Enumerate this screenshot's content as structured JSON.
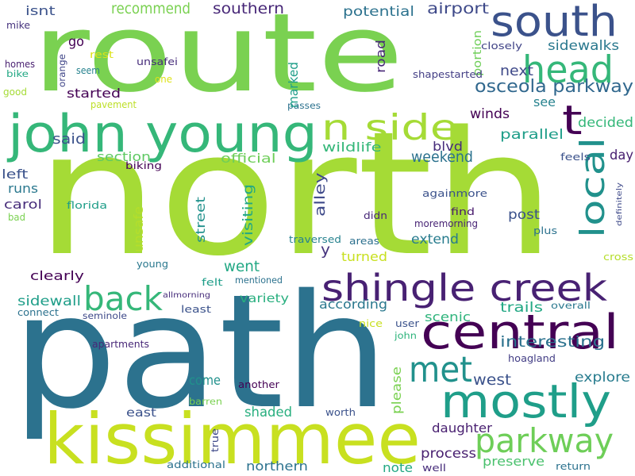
{
  "words": [
    {
      "text": "route",
      "color": "#7ad151"
    },
    {
      "text": "north",
      "color": "#a5db36"
    },
    {
      "text": "path",
      "color": "#2c728e"
    },
    {
      "text": "south",
      "color": "#3b528b"
    },
    {
      "text": "john young",
      "color": "#35b779"
    },
    {
      "text": "kissimmee",
      "color": "#c8e020"
    },
    {
      "text": "central",
      "color": "#440154"
    },
    {
      "text": "shingle creek",
      "color": "#482173"
    },
    {
      "text": "mostly",
      "color": "#1f9e89"
    },
    {
      "text": "head",
      "color": "#35b779"
    },
    {
      "text": "t",
      "color": "#440154"
    },
    {
      "text": "n side",
      "color": "#a5db36"
    },
    {
      "text": "local",
      "color": "#21918c"
    },
    {
      "text": "back",
      "color": "#35b779"
    },
    {
      "text": "met",
      "color": "#21918c"
    },
    {
      "text": "parkway",
      "color": "#6ece58"
    },
    {
      "text": "osceola parkway",
      "color": "#31688e"
    },
    {
      "text": "sidewalks",
      "color": "#2a788e"
    },
    {
      "text": "recommend",
      "color": "#7ad151"
    },
    {
      "text": "southern",
      "color": "#482878"
    },
    {
      "text": "airport",
      "color": "#3e4989"
    },
    {
      "text": "potential",
      "color": "#2c728e"
    },
    {
      "text": "isnt",
      "color": "#3b528b"
    },
    {
      "text": "go",
      "color": "#440154"
    },
    {
      "text": "mike",
      "color": "#46337e"
    },
    {
      "text": "rest",
      "color": "#dde318"
    },
    {
      "text": "unsafei",
      "color": "#472d7b"
    },
    {
      "text": "seem",
      "color": "#26828e"
    },
    {
      "text": "homes",
      "color": "#481f70"
    },
    {
      "text": "bike",
      "color": "#22a884"
    },
    {
      "text": "good",
      "color": "#a5db36"
    },
    {
      "text": "orange",
      "color": "#404688"
    },
    {
      "text": "one",
      "color": "#dde318"
    },
    {
      "text": "started",
      "color": "#440154"
    },
    {
      "text": "pavement",
      "color": "#bddf26"
    },
    {
      "text": "passes",
      "color": "#2c728e"
    },
    {
      "text": "marked",
      "color": "#1f9e89"
    },
    {
      "text": "road",
      "color": "#482878"
    },
    {
      "text": "portion",
      "color": "#6ece58"
    },
    {
      "text": "closely",
      "color": "#414487"
    },
    {
      "text": "next",
      "color": "#3e4989"
    },
    {
      "text": "shapestarted",
      "color": "#433e85"
    },
    {
      "text": "see",
      "color": "#26828e"
    },
    {
      "text": "winds",
      "color": "#440154"
    },
    {
      "text": "decided",
      "color": "#35b779"
    },
    {
      "text": "parallel",
      "color": "#1f9e89"
    },
    {
      "text": "wildlife",
      "color": "#35b779"
    },
    {
      "text": "blvd",
      "color": "#472d7b"
    },
    {
      "text": "said",
      "color": "#3b528b"
    },
    {
      "text": "section",
      "color": "#5ec962"
    },
    {
      "text": "official",
      "color": "#6ece58"
    },
    {
      "text": "weekend",
      "color": "#2c728e"
    },
    {
      "text": "biking",
      "color": "#440154"
    },
    {
      "text": "feels",
      "color": "#3b528b"
    },
    {
      "text": "day",
      "color": "#481f70"
    },
    {
      "text": "left",
      "color": "#3b528b"
    },
    {
      "text": "runs",
      "color": "#2a788e"
    },
    {
      "text": "carol",
      "color": "#472d7b"
    },
    {
      "text": "bad",
      "color": "#7ad151"
    },
    {
      "text": "florida",
      "color": "#1f9e89"
    },
    {
      "text": "unsafe",
      "color": "#b5de2b"
    },
    {
      "text": "street",
      "color": "#21918c"
    },
    {
      "text": "visiting",
      "color": "#22a884"
    },
    {
      "text": "alley",
      "color": "#3e4989"
    },
    {
      "text": "againmore",
      "color": "#3b528b"
    },
    {
      "text": "definitely",
      "color": "#3e4989"
    },
    {
      "text": "didn",
      "color": "#482878"
    },
    {
      "text": "find",
      "color": "#481a6c"
    },
    {
      "text": "moremorning",
      "color": "#482475"
    },
    {
      "text": "post",
      "color": "#3b528b"
    },
    {
      "text": "plus",
      "color": "#2c728e"
    },
    {
      "text": "extend",
      "color": "#287c8e"
    },
    {
      "text": "traversed",
      "color": "#26828e"
    },
    {
      "text": "areas",
      "color": "#2d708e"
    },
    {
      "text": "y",
      "color": "#46337e"
    },
    {
      "text": "turned",
      "color": "#c8e020"
    },
    {
      "text": "young",
      "color": "#2a788e"
    },
    {
      "text": "cross",
      "color": "#b5de2b"
    },
    {
      "text": "went",
      "color": "#22a884"
    },
    {
      "text": "clearly",
      "color": "#440154"
    },
    {
      "text": "felt",
      "color": "#1f9e89"
    },
    {
      "text": "mentioned",
      "color": "#2c728e"
    },
    {
      "text": "sidewall",
      "color": "#1f9e89"
    },
    {
      "text": "allmorning",
      "color": "#472d7b"
    },
    {
      "text": "variety",
      "color": "#29af7f"
    },
    {
      "text": "connect",
      "color": "#2c728e"
    },
    {
      "text": "least",
      "color": "#3b528b"
    },
    {
      "text": "according",
      "color": "#2a788e"
    },
    {
      "text": "trails",
      "color": "#22a884"
    },
    {
      "text": "overall",
      "color": "#2a788e"
    },
    {
      "text": "seminole",
      "color": "#3e4989"
    },
    {
      "text": "scenic",
      "color": "#2fb47c"
    },
    {
      "text": "nice",
      "color": "#c8e020"
    },
    {
      "text": "user",
      "color": "#3b528b"
    },
    {
      "text": "john",
      "color": "#2fb47c"
    },
    {
      "text": "apartments",
      "color": "#482878"
    },
    {
      "text": "interesting",
      "color": "#2c728e"
    },
    {
      "text": "hoagland",
      "color": "#433e85"
    },
    {
      "text": "west",
      "color": "#3b528b"
    },
    {
      "text": "explore",
      "color": "#287c8e"
    },
    {
      "text": "come",
      "color": "#21918c"
    },
    {
      "text": "another",
      "color": "#440154"
    },
    {
      "text": "barren",
      "color": "#7ad151"
    },
    {
      "text": "please",
      "color": "#7ad151"
    },
    {
      "text": "east",
      "color": "#3b528b"
    },
    {
      "text": "shaded",
      "color": "#29af7f"
    },
    {
      "text": "worth",
      "color": "#3b528b"
    },
    {
      "text": "daughter",
      "color": "#481f70"
    },
    {
      "text": "true",
      "color": "#3e4989"
    },
    {
      "text": "process",
      "color": "#481f70"
    },
    {
      "text": "preserve",
      "color": "#4ac16d"
    },
    {
      "text": "additional",
      "color": "#2c728e"
    },
    {
      "text": "northern",
      "color": "#2c728e"
    },
    {
      "text": "note",
      "color": "#22a884"
    },
    {
      "text": "well",
      "color": "#472d7b"
    },
    {
      "text": "return",
      "color": "#2c728e"
    }
  ]
}
